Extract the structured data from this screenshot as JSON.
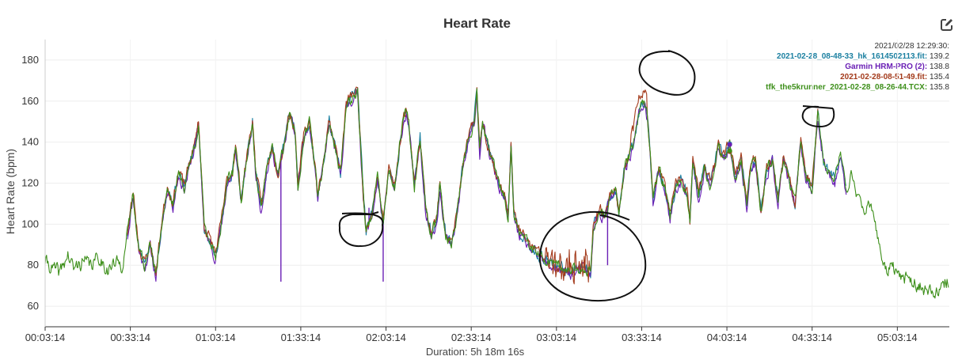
{
  "chart_data": {
    "type": "line",
    "title": "Heart Rate",
    "ylabel": "Heart Rate (bpm)",
    "xlabel": "Duration: 5h 18m 16s",
    "ylim": [
      50,
      190
    ],
    "yticks": [
      60,
      80,
      100,
      120,
      140,
      160,
      180
    ],
    "xticks": [
      "00:03:14",
      "00:33:14",
      "01:03:14",
      "01:33:14",
      "02:03:14",
      "02:33:14",
      "03:03:14",
      "03:33:14",
      "04:03:14",
      "04:33:14",
      "05:03:14"
    ],
    "xtick_minutes": [
      0,
      30,
      60,
      90,
      120,
      150,
      180,
      210,
      240,
      270,
      300
    ],
    "xlim_minutes": [
      0,
      318.3
    ],
    "grid": true,
    "legend_position": "top-right",
    "hover_time": "2021/02/28 12:29:30:",
    "anchors": [
      [
        0,
        82
      ],
      [
        3,
        78
      ],
      [
        5,
        76
      ],
      [
        8,
        85
      ],
      [
        10,
        78
      ],
      [
        13,
        82
      ],
      [
        16,
        80
      ],
      [
        19,
        84
      ],
      [
        22,
        78
      ],
      [
        25,
        81
      ],
      [
        27,
        80
      ],
      [
        29,
        95
      ],
      [
        31,
        115
      ],
      [
        33,
        88
      ],
      [
        35,
        80
      ],
      [
        37,
        90
      ],
      [
        39,
        75
      ],
      [
        41,
        100
      ],
      [
        43,
        118
      ],
      [
        45,
        110
      ],
      [
        47,
        125
      ],
      [
        49,
        118
      ],
      [
        51,
        130
      ],
      [
        53,
        140
      ],
      [
        54,
        150
      ],
      [
        55,
        125
      ],
      [
        56,
        98
      ],
      [
        58,
        92
      ],
      [
        60,
        85
      ],
      [
        62,
        100
      ],
      [
        64,
        120
      ],
      [
        66,
        125
      ],
      [
        67,
        138
      ],
      [
        69,
        112
      ],
      [
        71,
        132
      ],
      [
        73,
        150
      ],
      [
        74,
        128
      ],
      [
        76,
        108
      ],
      [
        78,
        126
      ],
      [
        80,
        138
      ],
      [
        82,
        124
      ],
      [
        84,
        138
      ],
      [
        86,
        154
      ],
      [
        88,
        145
      ],
      [
        89,
        118
      ],
      [
        91,
        142
      ],
      [
        93,
        150
      ],
      [
        95,
        128
      ],
      [
        96,
        113
      ],
      [
        98,
        130
      ],
      [
        100,
        150
      ],
      [
        102,
        138
      ],
      [
        104,
        125
      ],
      [
        106,
        158
      ],
      [
        108,
        162
      ],
      [
        110,
        164
      ],
      [
        111,
        140
      ],
      [
        112,
        115
      ],
      [
        113,
        97
      ],
      [
        115,
        104
      ],
      [
        117,
        123
      ],
      [
        119,
        100
      ],
      [
        121,
        127
      ],
      [
        123,
        117
      ],
      [
        125,
        140
      ],
      [
        126,
        150
      ],
      [
        127,
        155
      ],
      [
        128,
        150
      ],
      [
        130,
        118
      ],
      [
        132,
        142
      ],
      [
        134,
        107
      ],
      [
        136,
        95
      ],
      [
        138,
        103
      ],
      [
        139,
        120
      ],
      [
        141,
        95
      ],
      [
        143,
        90
      ],
      [
        145,
        104
      ],
      [
        147,
        128
      ],
      [
        149,
        140
      ],
      [
        151,
        150
      ],
      [
        152,
        165
      ],
      [
        153,
        135
      ],
      [
        154,
        150
      ],
      [
        156,
        137
      ],
      [
        158,
        128
      ],
      [
        160,
        118
      ],
      [
        162,
        112
      ],
      [
        163,
        104
      ],
      [
        164,
        138
      ],
      [
        165,
        104
      ],
      [
        167,
        96
      ],
      [
        170,
        90
      ],
      [
        173,
        86
      ],
      [
        176,
        82
      ],
      [
        179,
        80
      ],
      [
        182,
        78
      ],
      [
        185,
        77
      ],
      [
        188,
        78
      ],
      [
        190,
        80
      ],
      [
        192,
        75
      ],
      [
        193,
        100
      ],
      [
        195,
        106
      ],
      [
        197,
        104
      ],
      [
        199,
        114
      ],
      [
        201,
        116
      ],
      [
        202,
        105
      ],
      [
        204,
        128
      ],
      [
        205,
        131
      ],
      [
        207,
        139
      ],
      [
        209,
        155
      ],
      [
        211,
        160
      ],
      [
        212,
        152
      ],
      [
        213,
        134
      ],
      [
        214,
        110
      ],
      [
        216,
        128
      ],
      [
        218,
        118
      ],
      [
        220,
        104
      ],
      [
        222,
        118
      ],
      [
        224,
        122
      ],
      [
        226,
        115
      ],
      [
        227,
        100
      ],
      [
        228,
        131
      ],
      [
        230,
        114
      ],
      [
        232,
        127
      ],
      [
        234,
        120
      ],
      [
        236,
        131
      ],
      [
        237,
        137
      ],
      [
        239,
        132
      ],
      [
        241,
        140
      ],
      [
        243,
        121
      ],
      [
        245,
        132
      ],
      [
        247,
        109
      ],
      [
        248,
        125
      ],
      [
        250,
        132
      ],
      [
        252,
        106
      ],
      [
        254,
        126
      ],
      [
        256,
        131
      ],
      [
        258,
        112
      ],
      [
        260,
        133
      ],
      [
        262,
        120
      ],
      [
        264,
        110
      ],
      [
        266,
        140
      ],
      [
        268,
        122
      ],
      [
        270,
        118
      ],
      [
        272,
        153
      ],
      [
        274,
        130
      ],
      [
        276,
        125
      ],
      [
        278,
        122
      ],
      [
        280,
        135
      ],
      [
        282,
        116
      ],
      [
        284,
        125
      ],
      [
        286,
        113
      ],
      [
        288,
        105
      ],
      [
        290,
        112
      ],
      [
        292,
        100
      ],
      [
        294,
        88
      ],
      [
        296,
        78
      ],
      [
        298,
        80
      ],
      [
        300,
        77
      ],
      [
        302,
        75
      ],
      [
        304,
        73
      ],
      [
        306,
        72
      ],
      [
        308,
        70
      ],
      [
        310,
        68
      ],
      [
        312,
        65
      ],
      [
        314,
        66
      ],
      [
        316,
        70
      ],
      [
        318,
        73
      ]
    ],
    "spikes": [
      [
        83,
        72
      ],
      [
        112,
        114
      ],
      [
        114,
        108
      ],
      [
        119,
        72
      ],
      [
        198,
        80
      ]
    ],
    "series": [
      {
        "name": "2021-02-28_08-48-33_hk_1614502113.fit",
        "hover_value": "139.2",
        "color": "#1a7fa0",
        "start": 29,
        "end": 282,
        "seed": 5,
        "offset": 0.3
      },
      {
        "name": "Garmin HRM-PRO (2)",
        "hover_value": "138.8",
        "color": "#6a1fb5",
        "start": 29,
        "end": 282,
        "seed": 11,
        "offset": -1.2
      },
      {
        "name": "2021-02-28-08-51-49.fit",
        "hover_value": "135.4",
        "color": "#a33a1b",
        "start": 29,
        "end": 272,
        "seed": 23,
        "offset": 1.0
      },
      {
        "name": "tfk_the5krunner_2021-02-28_08-26-44.TCX",
        "hover_value": "135.8",
        "color": "#3d8f1a",
        "start": 0,
        "end": 318,
        "seed": 41,
        "offset": 0
      }
    ]
  },
  "icons": {
    "edit": "edit-square-icon"
  }
}
